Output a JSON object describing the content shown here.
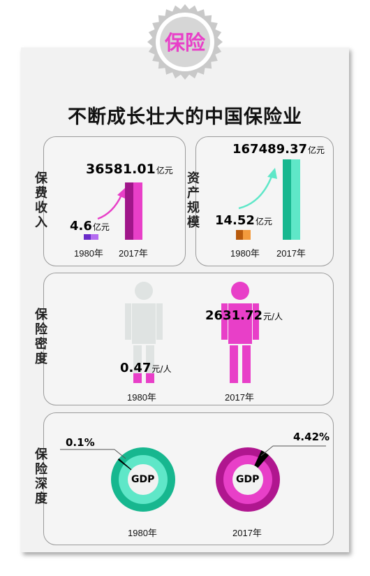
{
  "badge": {
    "label": "保险"
  },
  "title": "不断成长壮大的中国保险业",
  "colors": {
    "magenta": "#e83fc8",
    "purple": "#6a2bc9",
    "teal": "#17b78f",
    "mint": "#5fe7c8",
    "orange": "#e8801f",
    "grey": "#dfe3e2"
  },
  "sections": {
    "premium": {
      "label": "保费收入",
      "value_1980": "4.6",
      "value_2017": "36581.01",
      "unit": "亿元",
      "year_1980": "1980年",
      "year_2017": "2017年"
    },
    "assets": {
      "label": "资产规模",
      "value_1980": "14.52",
      "value_2017": "167489.37",
      "unit": "亿元",
      "year_1980": "1980年",
      "year_2017": "2017年"
    },
    "density": {
      "label": "保险密度",
      "value_1980": "0.47",
      "value_2017": "2631.72",
      "unit": "元/人",
      "year_1980": "1980年",
      "year_2017": "2017年"
    },
    "depth": {
      "label": "保险深度",
      "value_1980": "0.1%",
      "value_2017": "4.42%",
      "center_label": "GDP",
      "year_1980": "1980年",
      "year_2017": "2017年"
    }
  },
  "chart_data": [
    {
      "type": "bar",
      "title": "保费收入",
      "categories": [
        "1980年",
        "2017年"
      ],
      "values": [
        4.6,
        36581.01
      ]
    },
    {
      "type": "bar",
      "title": "资产规模",
      "categories": [
        "1980年",
        "2017年"
      ],
      "values": [
        14.52,
        167489.37
      ]
    },
    {
      "type": "bar",
      "title": "保险密度",
      "categories": [
        "1980年",
        "2017年"
      ],
      "values": [
        0.47,
        2631.72
      ]
    },
    {
      "type": "pie",
      "title": "保险深度",
      "categories": [
        "1980年",
        "2017年"
      ],
      "values": [
        0.1,
        4.42
      ]
    }
  ]
}
